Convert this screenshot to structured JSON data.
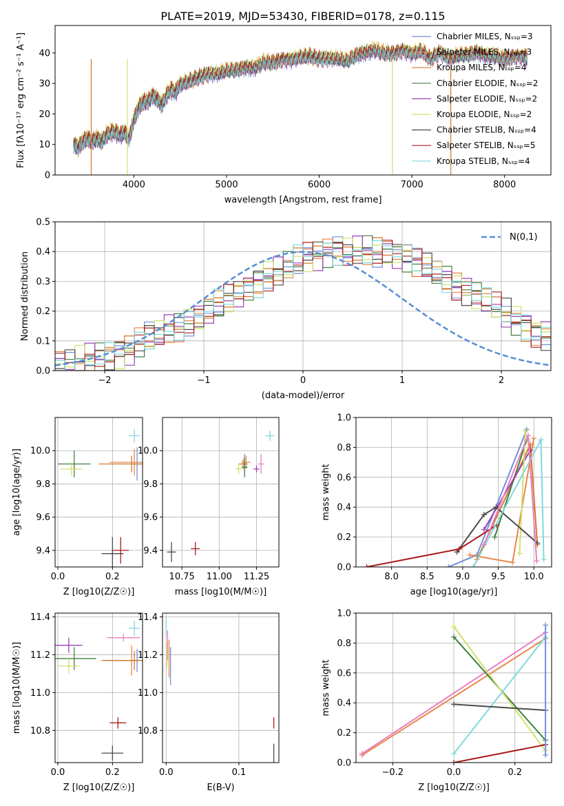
{
  "figure_title": "PLATE=2019, MJD=53430, FIBERID=0178, z=0.115",
  "colors": {
    "chab_miles": "#6f8fd8",
    "salp_miles": "#e8864a",
    "krou_miles": "#d2782a",
    "chab_elodie": "#3f7f3f",
    "salp_elodie": "#9b3fb8",
    "krou_elodie": "#cfe06a",
    "chab_stelib": "#4a4a4a",
    "salp_stelib": "#a81c1c",
    "krou_stelib": "#7fd8dc",
    "pink": "#e87fc0",
    "gauss": "#5b8fd4"
  },
  "chart_data": [
    {
      "id": "spectrum",
      "type": "line",
      "title": "PLATE=2019, MJD=53430, FIBERID=0178, z=0.115",
      "xlabel": "wavelength [Angstrom, rest frame]",
      "ylabel": "Flux [fλ10⁻¹⁷ erg cm⁻² s⁻¹ A⁻¹]",
      "xlim": [
        3150,
        8500
      ],
      "ylim": [
        0,
        49
      ],
      "xticks": [
        4000,
        5000,
        6000,
        7000,
        8000
      ],
      "yticks": [
        0,
        10,
        20,
        30,
        40
      ],
      "x": [
        3350,
        3400,
        3450,
        3500,
        3550,
        3600,
        3650,
        3700,
        3750,
        3800,
        3850,
        3900,
        3950,
        4000,
        4050,
        4100,
        4150,
        4200,
        4250,
        4300,
        4350,
        4400,
        4450,
        4500,
        4600,
        4700,
        4800,
        4900,
        5000,
        5100,
        5200,
        5300,
        5400,
        5500,
        5600,
        5700,
        5800,
        5900,
        6000,
        6100,
        6200,
        6300,
        6400,
        6500,
        6600,
        6700,
        6800,
        6900,
        7000,
        7100,
        7200,
        7300,
        7400,
        7500,
        7600,
        7700,
        7800,
        7900,
        8000,
        8100,
        8200,
        8250
      ],
      "flux": [
        10,
        9,
        11,
        12,
        11,
        12,
        11,
        13,
        14,
        14,
        13,
        14,
        12,
        18,
        22,
        24,
        24,
        26,
        25,
        23,
        26,
        28,
        27,
        30,
        31,
        32,
        33,
        33,
        34,
        34,
        35,
        35,
        37,
        37,
        38,
        38,
        39,
        39,
        38,
        38,
        38,
        37,
        39,
        40,
        41,
        40,
        40,
        41,
        40,
        41,
        38,
        40,
        38,
        39,
        39,
        40,
        39,
        39,
        38,
        39,
        39,
        38
      ],
      "series": [
        {
          "name": "Chabrier MILES, N_SSP=3",
          "color": "#6f8fd8"
        },
        {
          "name": "Salpeter MILES, N_SSP=3",
          "color": "#e8864a"
        },
        {
          "name": "Kroupa MILES, N_SSP=4",
          "color": "#d2782a"
        },
        {
          "name": "Chabrier ELODIE, N_SSP=2",
          "color": "#3f7f3f"
        },
        {
          "name": "Salpeter ELODIE, N_SSP=2",
          "color": "#9b3fb8"
        },
        {
          "name": "Kroupa ELODIE, N_SSP=2",
          "color": "#cfe06a"
        },
        {
          "name": "Chabrier STELIB, N_SSP=4",
          "color": "#4a4a4a"
        },
        {
          "name": "Salpeter STELIB, N_SSP=5",
          "color": "#a81c1c"
        },
        {
          "name": "Kroupa STELIB, N_SSP=4",
          "color": "#7fd8dc"
        }
      ]
    },
    {
      "id": "residuals",
      "type": "step-histogram",
      "xlabel": "(data-model)/error",
      "ylabel": "Normed distribution",
      "xlim": [
        -2.5,
        2.5
      ],
      "ylim": [
        0,
        0.5
      ],
      "xticks": [
        -2,
        -1,
        0,
        1,
        2
      ],
      "yticks": [
        0.0,
        0.1,
        0.2,
        0.3,
        0.4,
        0.5
      ],
      "bins_start": -2.5,
      "bin_width": 0.1,
      "envelope": [
        0.02,
        0.02,
        0.03,
        0.04,
        0.05,
        0.05,
        0.06,
        0.07,
        0.09,
        0.11,
        0.12,
        0.14,
        0.15,
        0.17,
        0.18,
        0.2,
        0.22,
        0.24,
        0.26,
        0.28,
        0.3,
        0.32,
        0.33,
        0.35,
        0.37,
        0.38,
        0.39,
        0.4,
        0.4,
        0.4,
        0.4,
        0.4,
        0.4,
        0.4,
        0.39,
        0.38,
        0.36,
        0.35,
        0.33,
        0.31,
        0.29,
        0.27,
        0.25,
        0.23,
        0.21,
        0.19,
        0.17,
        0.15,
        0.13,
        0.12
      ],
      "legend": "N(0,1)"
    },
    {
      "id": "age_vs_Z",
      "type": "errorbar",
      "xlabel": "Z [log10(Z/Z☉)]",
      "ylabel": "age [log10(age/yr)]",
      "xlim": [
        -0.01,
        0.31
      ],
      "ylim": [
        9.3,
        10.2
      ],
      "xticks": [
        0.0,
        0.2
      ],
      "yticks": [
        9.4,
        9.6,
        9.8,
        10.0
      ],
      "points": [
        {
          "c": "chab_miles",
          "x": 0.29,
          "xe": 0.02,
          "y": 9.92,
          "ye": 0.1
        },
        {
          "c": "salp_miles",
          "x": 0.28,
          "xe": 0.09,
          "y": 9.93,
          "ye": 0.08
        },
        {
          "c": "krou_miles",
          "x": 0.27,
          "xe": 0.12,
          "y": 9.92,
          "ye": 0.05
        },
        {
          "c": "chab_elodie",
          "x": 0.06,
          "xe": 0.06,
          "y": 9.92,
          "ye": 0.08
        },
        {
          "c": "krou_elodie",
          "x": 0.05,
          "xe": 0.04,
          "y": 9.89,
          "ye": 0.04
        },
        {
          "c": "chab_stelib",
          "x": 0.2,
          "xe": 0.04,
          "y": 9.38,
          "ye": 0.1
        },
        {
          "c": "salp_stelib",
          "x": 0.23,
          "xe": 0.03,
          "y": 9.4,
          "ye": 0.08
        },
        {
          "c": "krou_stelib",
          "x": 0.28,
          "xe": 0.02,
          "y": 10.09,
          "ye": 0.04
        }
      ]
    },
    {
      "id": "age_vs_mass",
      "type": "errorbar",
      "xlabel": "mass [log10(M/M☉)]",
      "ylabel": "",
      "xlim": [
        10.62,
        11.4
      ],
      "ylim": [
        9.3,
        10.2
      ],
      "xticks": [
        10.75,
        11.0,
        11.25
      ],
      "yticks": [
        9.4,
        9.6,
        9.8,
        10.0
      ],
      "points": [
        {
          "c": "chab_miles",
          "x": 11.17,
          "xe": 0.01,
          "y": 9.92,
          "ye": 0.06
        },
        {
          "c": "salp_miles",
          "x": 11.18,
          "xe": 0.03,
          "y": 9.93,
          "ye": 0.04
        },
        {
          "c": "krou_miles",
          "x": 11.16,
          "xe": 0.03,
          "y": 9.92,
          "ye": 0.03
        },
        {
          "c": "chab_elodie",
          "x": 11.17,
          "xe": 0.02,
          "y": 9.9,
          "ye": 0.06
        },
        {
          "c": "salp_elodie",
          "x": 11.25,
          "xe": 0.02,
          "y": 9.89,
          "ye": 0.02
        },
        {
          "c": "krou_elodie",
          "x": 11.13,
          "xe": 0.02,
          "y": 9.89,
          "ye": 0.03
        },
        {
          "c": "pink",
          "x": 11.28,
          "xe": 0.02,
          "y": 9.92,
          "ye": 0.06
        },
        {
          "c": "chab_stelib",
          "x": 10.68,
          "xe": 0.03,
          "y": 9.39,
          "ye": 0.06
        },
        {
          "c": "salp_stelib",
          "x": 10.84,
          "xe": 0.03,
          "y": 9.41,
          "ye": 0.04
        },
        {
          "c": "krou_stelib",
          "x": 11.34,
          "xe": 0.03,
          "y": 10.09,
          "ye": 0.03
        }
      ]
    },
    {
      "id": "mass_weight_vs_age",
      "type": "line",
      "xlabel": "age [log10(age/yr)]",
      "ylabel": "mass weight",
      "xlim": [
        7.5,
        10.25
      ],
      "ylim": [
        0,
        1
      ],
      "xticks": [
        8.0,
        8.5,
        9.0,
        9.5,
        10.0
      ],
      "yticks": [
        0.0,
        0.2,
        0.4,
        0.6,
        0.8,
        1.0
      ],
      "series": [
        {
          "c": "chab_miles",
          "x": [
            8.8,
            9.2,
            9.9
          ],
          "y": [
            0.0,
            0.08,
            0.92
          ]
        },
        {
          "c": "salp_miles",
          "x": [
            9.1,
            9.7,
            10.0
          ],
          "y": [
            0.08,
            0.03,
            0.86
          ]
        },
        {
          "c": "krou_miles",
          "x": [
            9.2,
            9.95,
            10.05
          ],
          "y": [
            0.05,
            0.82,
            0.15
          ]
        },
        {
          "c": "chab_elodie",
          "x": [
            9.45,
            9.9
          ],
          "y": [
            0.2,
            0.85
          ]
        },
        {
          "c": "salp_elodie",
          "x": [
            9.3,
            9.95
          ],
          "y": [
            0.25,
            0.78
          ]
        },
        {
          "c": "krou_elodie",
          "x": [
            9.8,
            9.88
          ],
          "y": [
            0.09,
            0.91
          ]
        },
        {
          "c": "chab_stelib",
          "x": [
            8.92,
            9.3,
            9.47,
            10.05
          ],
          "y": [
            0.1,
            0.35,
            0.4,
            0.16
          ]
        },
        {
          "c": "salp_stelib",
          "x": [
            7.65,
            8.95,
            9.48
          ],
          "y": [
            0.0,
            0.12,
            0.28
          ]
        },
        {
          "c": "krou_stelib",
          "x": [
            9.15,
            10.1,
            10.14
          ],
          "y": [
            0.0,
            0.85,
            0.05
          ]
        },
        {
          "c": "pink",
          "x": [
            9.3,
            9.92,
            10.04
          ],
          "y": [
            0.15,
            0.88,
            0.04
          ]
        }
      ]
    },
    {
      "id": "mass_vs_Z",
      "type": "errorbar",
      "xlabel": "Z [log10(Z/Z☉)]",
      "ylabel": "mass [log10(M/M☉)]",
      "xlim": [
        -0.01,
        0.31
      ],
      "ylim": [
        10.63,
        11.42
      ],
      "xticks": [
        0.0,
        0.2
      ],
      "yticks": [
        10.8,
        11.0,
        11.2,
        11.4
      ],
      "points": [
        {
          "c": "chab_miles",
          "x": 0.29,
          "xe": 0.02,
          "y": 11.17,
          "ye": 0.06
        },
        {
          "c": "salp_miles",
          "x": 0.27,
          "xe": 0.09,
          "y": 11.17,
          "ye": 0.08
        },
        {
          "c": "krou_miles",
          "x": 0.28,
          "xe": 0.12,
          "y": 11.17,
          "ye": 0.05
        },
        {
          "c": "chab_elodie",
          "x": 0.06,
          "xe": 0.08,
          "y": 11.18,
          "ye": 0.06
        },
        {
          "c": "salp_elodie",
          "x": 0.04,
          "xe": 0.05,
          "y": 11.25,
          "ye": 0.04
        },
        {
          "c": "krou_elodie",
          "x": 0.04,
          "xe": 0.04,
          "y": 11.14,
          "ye": 0.04
        },
        {
          "c": "pink",
          "x": 0.24,
          "xe": 0.06,
          "y": 11.29,
          "ye": 0.02
        },
        {
          "c": "chab_stelib",
          "x": 0.2,
          "xe": 0.04,
          "y": 10.68,
          "ye": 0.04
        },
        {
          "c": "salp_stelib",
          "x": 0.22,
          "xe": 0.03,
          "y": 10.84,
          "ye": 0.03
        },
        {
          "c": "krou_stelib",
          "x": 0.28,
          "xe": 0.02,
          "y": 11.34,
          "ye": 0.04
        }
      ]
    },
    {
      "id": "mass_vs_ebv",
      "type": "errorbar",
      "xlabel": "E(B-V)",
      "ylabel": "",
      "xlim": [
        -0.005,
        0.155
      ],
      "ylim": [
        10.63,
        11.42
      ],
      "xticks": [
        0.0,
        0.1
      ],
      "yticks": [
        10.8,
        11.0,
        11.2,
        11.4
      ],
      "points": [
        {
          "c": "chab_miles",
          "x": 0.006,
          "xe": 0.0,
          "y": 11.14,
          "ye": 0.1
        },
        {
          "c": "salp_miles",
          "x": 0.004,
          "xe": 0.0,
          "y": 11.18,
          "ye": 0.1
        },
        {
          "c": "pink",
          "x": 0.002,
          "xe": 0.0,
          "y": 11.25,
          "ye": 0.08
        },
        {
          "c": "krou_elodie",
          "x": 0.001,
          "xe": 0.0,
          "y": 11.2,
          "ye": 0.07
        },
        {
          "c": "krou_stelib",
          "x": 0.0,
          "xe": 0.0,
          "y": 11.34,
          "ye": 0.05
        },
        {
          "c": "chab_stelib",
          "x": 0.148,
          "xe": 0.0,
          "y": 10.68,
          "ye": 0.05
        },
        {
          "c": "salp_stelib",
          "x": 0.148,
          "xe": 0.0,
          "y": 10.84,
          "ye": 0.03
        }
      ]
    },
    {
      "id": "mass_weight_vs_Z",
      "type": "line",
      "xlabel": "Z [log10(Z/Z☉)]",
      "ylabel": "mass weight",
      "xlim": [
        -0.32,
        0.32
      ],
      "ylim": [
        0,
        1
      ],
      "xticks": [
        -0.2,
        0.0,
        0.2
      ],
      "yticks": [
        0.0,
        0.2,
        0.4,
        0.6,
        0.8,
        1.0
      ],
      "series": [
        {
          "c": "salp_miles",
          "x": [
            -0.3,
            0.3
          ],
          "y": [
            0.05,
            0.83
          ]
        },
        {
          "c": "pink",
          "x": [
            -0.3,
            0.3
          ],
          "y": [
            0.06,
            0.87
          ]
        },
        {
          "c": "chab_elodie",
          "x": [
            0.0,
            0.3
          ],
          "y": [
            0.84,
            0.15
          ]
        },
        {
          "c": "krou_elodie",
          "x": [
            0.0,
            0.3
          ],
          "y": [
            0.91,
            0.08
          ]
        },
        {
          "c": "krou_stelib",
          "x": [
            0.0,
            0.3
          ],
          "y": [
            0.06,
            0.84
          ]
        },
        {
          "c": "chab_stelib",
          "x": [
            0.0,
            0.3
          ],
          "y": [
            0.39,
            0.35
          ]
        },
        {
          "c": "salp_stelib",
          "x": [
            0.0,
            0.3
          ],
          "y": [
            0.0,
            0.12
          ]
        },
        {
          "c": "chab_miles",
          "x": [
            0.3,
            0.3
          ],
          "y": [
            0.92,
            0.05
          ]
        }
      ]
    }
  ]
}
